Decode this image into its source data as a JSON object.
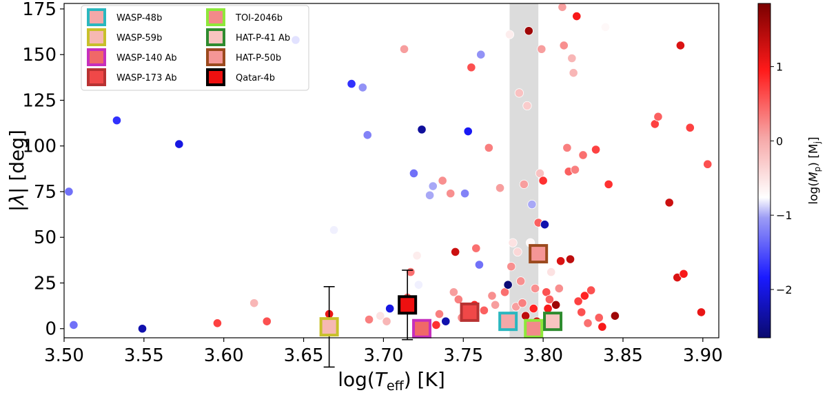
{
  "chart_data": {
    "type": "scatter",
    "title": "",
    "xlabel": "log(T_eff) [K]",
    "ylabel": "|λ| [deg]",
    "colorbar_label": "log(M_p) [M_j]",
    "xlim": [
      3.5,
      3.91
    ],
    "ylim": [
      -5,
      178
    ],
    "x_ticks": [
      "3.50",
      "3.55",
      "3.60",
      "3.65",
      "3.70",
      "3.75",
      "3.80",
      "3.85",
      "3.90"
    ],
    "x_tick_values": [
      3.5,
      3.55,
      3.6,
      3.65,
      3.7,
      3.75,
      3.8,
      3.85,
      3.9
    ],
    "y_ticks": [
      "0",
      "25",
      "50",
      "75",
      "100",
      "125",
      "150",
      "175"
    ],
    "y_tick_values": [
      0,
      25,
      50,
      75,
      100,
      125,
      150,
      175
    ],
    "colorbar_range": [
      -2.65,
      1.85
    ],
    "colorbar_ticks": [
      "−2",
      "−1",
      "0",
      "1"
    ],
    "colorbar_tick_values": [
      -2,
      -1,
      0,
      1
    ],
    "shaded_band_x": [
      3.779,
      3.797
    ],
    "legend_position": "top-left",
    "background_points": [
      [
        3.503,
        75,
        -1.3
      ],
      [
        3.506,
        2,
        -1.3
      ],
      [
        3.533,
        114,
        -1.7
      ],
      [
        3.549,
        0,
        -2.3
      ],
      [
        3.572,
        101,
        -2.0
      ],
      [
        3.596,
        3,
        0.7
      ],
      [
        3.619,
        14,
        -0.1
      ],
      [
        3.627,
        4,
        0.6
      ],
      [
        3.645,
        158,
        -1.6
      ],
      [
        3.666,
        8,
        1.1
      ],
      [
        3.669,
        54,
        -0.8
      ],
      [
        3.68,
        134,
        -1.7
      ],
      [
        3.687,
        132,
        -1.1
      ],
      [
        3.69,
        106,
        -1.2
      ],
      [
        3.691,
        5,
        0.3
      ],
      [
        3.698,
        7,
        -0.5
      ],
      [
        3.702,
        4,
        -0.1
      ],
      [
        3.704,
        11,
        -2.0
      ],
      [
        3.713,
        153,
        0.1
      ],
      [
        3.715,
        17,
        0.5
      ],
      [
        3.717,
        31,
        0.4
      ],
      [
        3.719,
        85,
        -1.3
      ],
      [
        3.721,
        40,
        -0.6
      ],
      [
        3.722,
        24,
        -0.8
      ],
      [
        3.724,
        109,
        -2.4
      ],
      [
        3.727,
        2,
        0.9
      ],
      [
        3.729,
        73,
        -1.0
      ],
      [
        3.731,
        78,
        -1.0
      ],
      [
        3.733,
        2,
        0.8
      ],
      [
        3.735,
        8,
        0.3
      ],
      [
        3.737,
        81,
        0.2
      ],
      [
        3.739,
        4,
        -2.3
      ],
      [
        3.742,
        74,
        0.2
      ],
      [
        3.744,
        20,
        0.1
      ],
      [
        3.745,
        42,
        1.3
      ],
      [
        3.747,
        16,
        0.3
      ],
      [
        3.749,
        6,
        0.2
      ],
      [
        3.751,
        74,
        -1.2
      ],
      [
        3.753,
        108,
        -1.9
      ],
      [
        3.755,
        143,
        0.6
      ],
      [
        3.757,
        13,
        0.9
      ],
      [
        3.758,
        44,
        0.4
      ],
      [
        3.76,
        35,
        -1.3
      ],
      [
        3.761,
        150,
        -1.1
      ],
      [
        3.763,
        10,
        0.5
      ],
      [
        3.766,
        99,
        0.3
      ],
      [
        3.768,
        18,
        0.2
      ],
      [
        3.77,
        13,
        0.1
      ],
      [
        3.773,
        77,
        0.1
      ],
      [
        3.775,
        7,
        0.8
      ],
      [
        3.776,
        20,
        0.4
      ],
      [
        3.778,
        24,
        -2.6
      ],
      [
        3.779,
        161,
        -0.6
      ],
      [
        3.78,
        34,
        0.2
      ],
      [
        3.781,
        47,
        -0.5
      ],
      [
        3.783,
        12,
        0.1
      ],
      [
        3.784,
        42,
        -0.4
      ],
      [
        3.785,
        129,
        -0.2
      ],
      [
        3.786,
        26,
        0.2
      ],
      [
        3.787,
        14,
        0.3
      ],
      [
        3.788,
        79,
        0.1
      ],
      [
        3.789,
        7,
        1.4
      ],
      [
        3.79,
        122,
        -0.3
      ],
      [
        3.791,
        163,
        1.6
      ],
      [
        3.792,
        47,
        -0.7
      ],
      [
        3.793,
        68,
        -1.0
      ],
      [
        3.794,
        11,
        0.9
      ],
      [
        3.795,
        22,
        0.2
      ],
      [
        3.796,
        4,
        1.3
      ],
      [
        3.797,
        58,
        0.5
      ],
      [
        3.798,
        85,
        -0.2
      ],
      [
        3.799,
        153,
        0.1
      ],
      [
        3.8,
        81,
        0.8
      ],
      [
        3.801,
        57,
        -2.3
      ],
      [
        3.802,
        20,
        0.6
      ],
      [
        3.803,
        11,
        1.0
      ],
      [
        3.804,
        16,
        0.5
      ],
      [
        3.805,
        31,
        -0.5
      ],
      [
        3.806,
        4,
        0.9
      ],
      [
        3.808,
        13,
        1.6
      ],
      [
        3.81,
        22,
        0.2
      ],
      [
        3.811,
        37,
        1.2
      ],
      [
        3.812,
        176,
        0.1
      ],
      [
        3.813,
        155,
        0.2
      ],
      [
        3.815,
        99,
        0.3
      ],
      [
        3.816,
        86,
        0.5
      ],
      [
        3.817,
        38,
        1.4
      ],
      [
        3.818,
        148,
        -0.1
      ],
      [
        3.819,
        140,
        -0.1
      ],
      [
        3.82,
        87,
        0.3
      ],
      [
        3.821,
        171,
        1.0
      ],
      [
        3.822,
        15,
        0.7
      ],
      [
        3.824,
        9,
        0.6
      ],
      [
        3.825,
        95,
        0.4
      ],
      [
        3.826,
        18,
        0.9
      ],
      [
        3.828,
        3,
        0.4
      ],
      [
        3.83,
        21,
        0.6
      ],
      [
        3.833,
        98,
        0.7
      ],
      [
        3.835,
        6,
        0.5
      ],
      [
        3.837,
        1,
        1.0
      ],
      [
        3.839,
        165,
        -0.7
      ],
      [
        3.841,
        79,
        0.8
      ],
      [
        3.845,
        7,
        1.6
      ],
      [
        3.87,
        112,
        0.7
      ],
      [
        3.872,
        116,
        0.5
      ],
      [
        3.879,
        69,
        1.3
      ],
      [
        3.884,
        28,
        1.2
      ],
      [
        3.886,
        155,
        1.2
      ],
      [
        3.888,
        30,
        1.0
      ],
      [
        3.892,
        110,
        0.7
      ],
      [
        3.899,
        9,
        1.1
      ],
      [
        3.903,
        90,
        0.6
      ]
    ],
    "highlighted_planets": [
      {
        "name": "WASP-48b",
        "x": 3.778,
        "y": 4,
        "fill": "#f4a8a8",
        "edge": "#2ab7bf"
      },
      {
        "name": "WASP-59b",
        "x": 3.666,
        "y": 1,
        "yerr": 22,
        "fill": "#f6b8b3",
        "edge": "#c8c02a"
      },
      {
        "name": "WASP-140 Ab",
        "x": 3.724,
        "y": 0,
        "fill": "#f06868",
        "edge": "#c62fbd"
      },
      {
        "name": "WASP-173 Ab",
        "x": 3.754,
        "y": 9,
        "fill": "#f04848",
        "edge": "#b83232"
      },
      {
        "name": "TOI-2046b",
        "x": 3.794,
        "y": 0,
        "fill": "#f28a8a",
        "edge": "#8ee83a"
      },
      {
        "name": "HAT-P-41 Ab",
        "x": 3.806,
        "y": 4,
        "fill": "#f8c4c0",
        "edge": "#2e8b2e"
      },
      {
        "name": "HAT-P-50b",
        "x": 3.797,
        "y": 41,
        "fill": "#f59696",
        "edge": "#9b4a1e"
      },
      {
        "name": "Qatar-4b",
        "x": 3.715,
        "y": 13,
        "yerr": 19,
        "fill": "#ee1010",
        "edge": "#000000"
      }
    ]
  }
}
